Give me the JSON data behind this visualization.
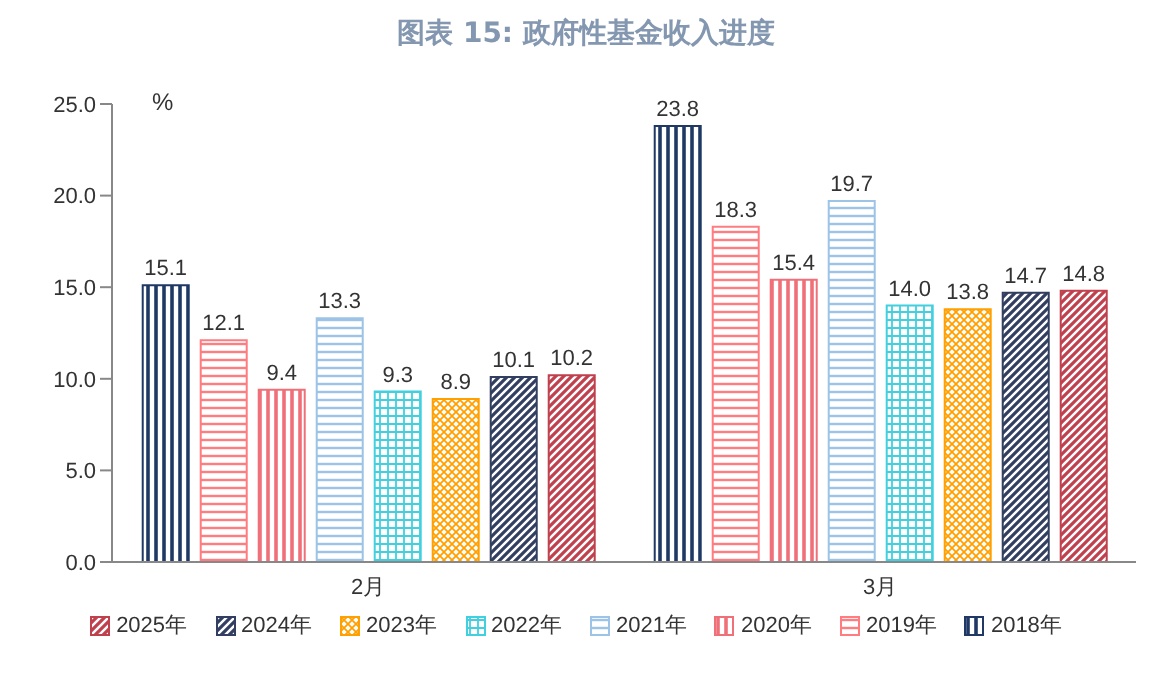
{
  "chart_data": {
    "type": "bar",
    "title": "图表 15: 政府性基金收入进度",
    "ylabel": "%",
    "categories": [
      "2月",
      "3月"
    ],
    "series": [
      {
        "name": "2018年",
        "color": "#1f3864",
        "values": [
          15.1,
          23.8
        ],
        "value_labels": [
          "15.1",
          "23.8"
        ]
      },
      {
        "name": "2019年",
        "color": "#ff7c80",
        "values": [
          12.1,
          18.3
        ],
        "value_labels": [
          "12.1",
          "18.3"
        ]
      },
      {
        "name": "2020年",
        "color": "#f0707a",
        "values": [
          9.4,
          15.4
        ],
        "value_labels": [
          "9.4",
          "15.4"
        ]
      },
      {
        "name": "2021年",
        "color": "#9dc3e6",
        "values": [
          13.3,
          19.7
        ],
        "value_labels": [
          "13.3",
          "19.7"
        ]
      },
      {
        "name": "2022年",
        "color": "#40d0e0",
        "values": [
          9.3,
          14.0
        ],
        "value_labels": [
          "9.3",
          "14.0"
        ]
      },
      {
        "name": "2023年",
        "color": "#ffa000",
        "values": [
          8.9,
          13.8
        ],
        "value_labels": [
          "8.9",
          "13.8"
        ]
      },
      {
        "name": "2024年",
        "color": "#333f60",
        "values": [
          10.1,
          14.7
        ],
        "value_labels": [
          "10.1",
          "14.7"
        ]
      },
      {
        "name": "2025年",
        "color": "#c0404d",
        "values": [
          10.2,
          14.8
        ],
        "value_labels": [
          "10.2",
          "14.8"
        ]
      }
    ],
    "ylim": [
      0,
      25
    ],
    "yticks": [
      {
        "value": 0,
        "label": "0.0"
      },
      {
        "value": 5,
        "label": "5.0"
      },
      {
        "value": 10,
        "label": "10.0"
      },
      {
        "value": 15,
        "label": "15.0"
      },
      {
        "value": 20,
        "label": "20.0"
      },
      {
        "value": 25,
        "label": "25.0"
      }
    ],
    "legend": "bottom"
  }
}
